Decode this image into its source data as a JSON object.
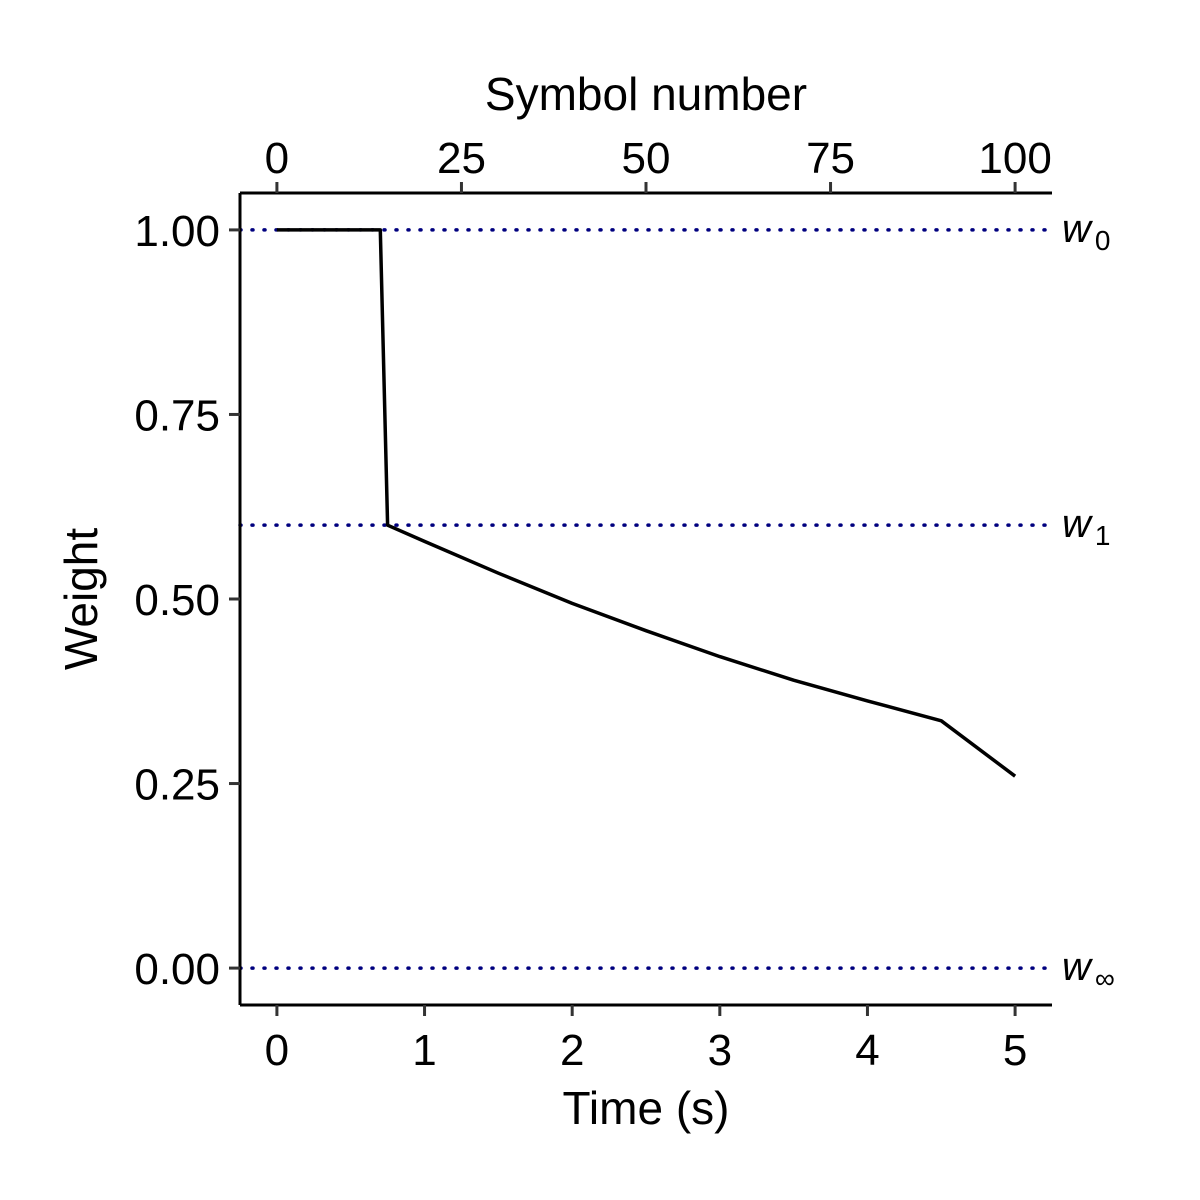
{
  "chart_data": {
    "type": "line",
    "xlabel": "Time (s)",
    "ylabel": "Weight",
    "x2label": "Symbol number",
    "xlim": [
      -0.25,
      5.25
    ],
    "ylim": [
      -0.05,
      1.05
    ],
    "x_ticks": [
      0,
      1,
      2,
      3,
      4,
      5
    ],
    "x_tick_labels": [
      "0",
      "1",
      "2",
      "3",
      "4",
      "5"
    ],
    "y_ticks": [
      0,
      0.25,
      0.5,
      0.75,
      1.0
    ],
    "y_tick_labels": [
      "0.00",
      "0.25",
      "0.50",
      "0.75",
      "1.00"
    ],
    "x2_ticks": [
      0,
      25,
      50,
      75,
      100
    ],
    "x2_tick_labels": [
      "0",
      "25",
      "50",
      "75",
      "100"
    ],
    "x2_scale": 20,
    "grid": false,
    "series": [
      {
        "color": "#000000",
        "points": [
          [
            0,
            1.0
          ],
          [
            0.7,
            1.0
          ],
          [
            0.75,
            0.6
          ],
          [
            1.0,
            0.578
          ],
          [
            1.5,
            0.535
          ],
          [
            2.0,
            0.494
          ],
          [
            2.5,
            0.457
          ],
          [
            3.0,
            0.422
          ],
          [
            3.5,
            0.39
          ],
          [
            4.0,
            0.362
          ],
          [
            4.5,
            0.335
          ],
          [
            5.0,
            0.26
          ]
        ]
      }
    ],
    "reference_lines": [
      {
        "y": 1.0,
        "label": "w",
        "subscript": "0",
        "color": "#00007f",
        "style": "dotted"
      },
      {
        "y": 0.6,
        "label": "w",
        "subscript": "1",
        "color": "#00007f",
        "style": "dotted"
      },
      {
        "y": 0.0,
        "label": "w",
        "subscript": "∞",
        "color": "#00007f",
        "style": "dotted"
      }
    ]
  }
}
